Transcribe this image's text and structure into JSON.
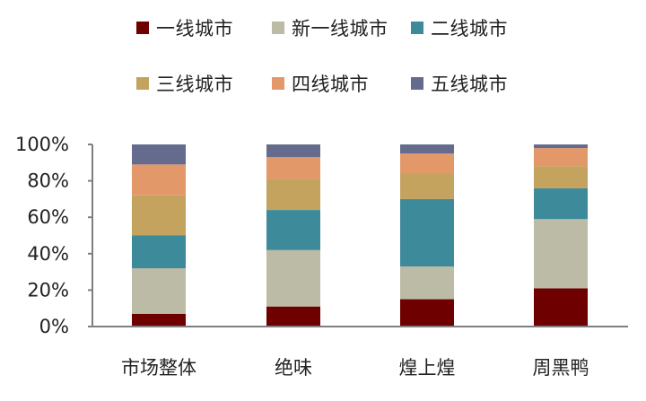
{
  "chart_data": {
    "type": "bar",
    "stacked": true,
    "categories": [
      "市场整体",
      "绝味",
      "煌上煌",
      "周黑鸭"
    ],
    "series": [
      {
        "name": "一线城市",
        "color": "#6e0000",
        "values": [
          7,
          11,
          15,
          21
        ]
      },
      {
        "name": "新一线城市",
        "color": "#bcbba6",
        "values": [
          25,
          31,
          18,
          38
        ]
      },
      {
        "name": "二线城市",
        "color": "#3d8a9a",
        "values": [
          18,
          22,
          37,
          17
        ]
      },
      {
        "name": "三线城市",
        "color": "#c4a35e",
        "values": [
          22,
          17,
          14,
          12
        ]
      },
      {
        "name": "四线城市",
        "color": "#e3986a",
        "values": [
          17,
          12,
          11,
          10
        ]
      },
      {
        "name": "五线城市",
        "color": "#646b8c",
        "values": [
          11,
          7,
          5,
          2
        ]
      }
    ],
    "y_ticks": [
      "0%",
      "20%",
      "40%",
      "60%",
      "80%",
      "100%"
    ],
    "ylim": [
      0,
      100
    ],
    "grid": false,
    "legend_position": "top"
  }
}
